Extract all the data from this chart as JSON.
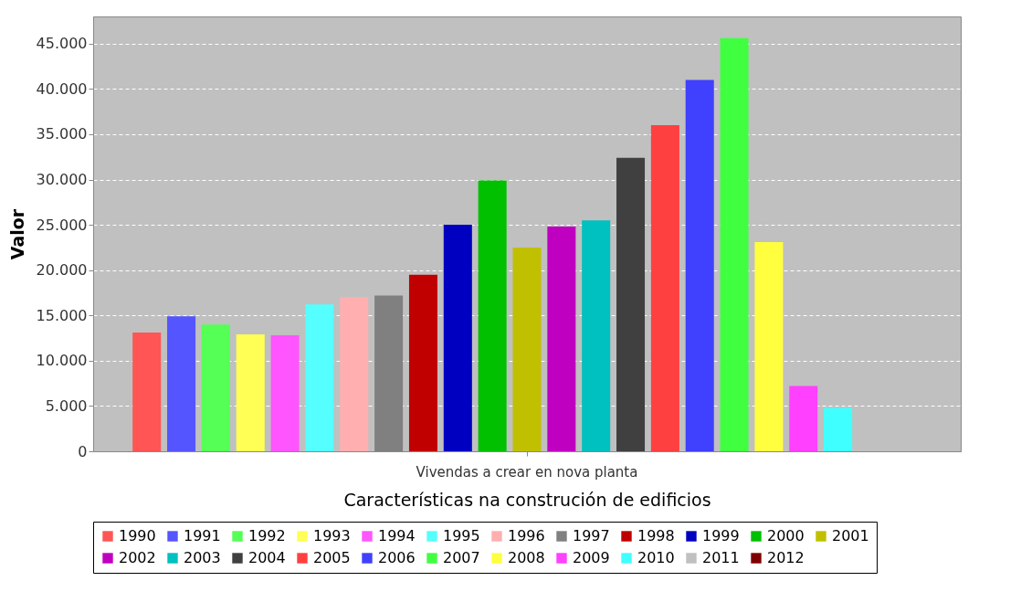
{
  "chart_data": {
    "type": "bar",
    "xlabel": "Características na construción de edificios",
    "ylabel": "Valor",
    "categories": [
      "Vivendas a crear en nova planta"
    ],
    "ylim": [
      0,
      48000
    ],
    "yticks": [
      {
        "value": 0,
        "label": "0"
      },
      {
        "value": 5000,
        "label": "5.000"
      },
      {
        "value": 10000,
        "label": "10.000"
      },
      {
        "value": 15000,
        "label": "15.000"
      },
      {
        "value": 20000,
        "label": "20.000"
      },
      {
        "value": 25000,
        "label": "25.000"
      },
      {
        "value": 30000,
        "label": "30.000"
      },
      {
        "value": 35000,
        "label": "35.000"
      },
      {
        "value": 40000,
        "label": "40.000"
      },
      {
        "value": 45000,
        "label": "45.000"
      }
    ],
    "grid": "y",
    "legend": "bottom",
    "series": [
      {
        "name": "1990",
        "color": "#ff5555",
        "values": [
          13100
        ]
      },
      {
        "name": "1991",
        "color": "#5555ff",
        "values": [
          14900
        ]
      },
      {
        "name": "1992",
        "color": "#55ff55",
        "values": [
          14000
        ]
      },
      {
        "name": "1993",
        "color": "#ffff55",
        "values": [
          12900
        ]
      },
      {
        "name": "1994",
        "color": "#ff55ff",
        "values": [
          12800
        ]
      },
      {
        "name": "1995",
        "color": "#55ffff",
        "values": [
          16200
        ]
      },
      {
        "name": "1996",
        "color": "#ffafaf",
        "values": [
          17000
        ]
      },
      {
        "name": "1997",
        "color": "#808080",
        "values": [
          17200
        ]
      },
      {
        "name": "1998",
        "color": "#c00000",
        "values": [
          19500
        ]
      },
      {
        "name": "1999",
        "color": "#0000c0",
        "values": [
          25000
        ]
      },
      {
        "name": "2000",
        "color": "#00c000",
        "values": [
          29900
        ]
      },
      {
        "name": "2001",
        "color": "#c0c000",
        "values": [
          22500
        ]
      },
      {
        "name": "2002",
        "color": "#c000c0",
        "values": [
          24800
        ]
      },
      {
        "name": "2003",
        "color": "#00c0c0",
        "values": [
          25500
        ]
      },
      {
        "name": "2004",
        "color": "#404040",
        "values": [
          32400
        ]
      },
      {
        "name": "2005",
        "color": "#ff4040",
        "values": [
          36000
        ]
      },
      {
        "name": "2006",
        "color": "#4040ff",
        "values": [
          41000
        ]
      },
      {
        "name": "2007",
        "color": "#40ff40",
        "values": [
          45600
        ]
      },
      {
        "name": "2008",
        "color": "#ffff40",
        "values": [
          23100
        ]
      },
      {
        "name": "2009",
        "color": "#ff40ff",
        "values": [
          7200
        ]
      },
      {
        "name": "2010",
        "color": "#40ffff",
        "values": [
          4800
        ]
      },
      {
        "name": "2011",
        "color": "#c0c0c0",
        "values": [
          null
        ]
      },
      {
        "name": "2012",
        "color": "#800000",
        "values": [
          null
        ]
      }
    ]
  }
}
